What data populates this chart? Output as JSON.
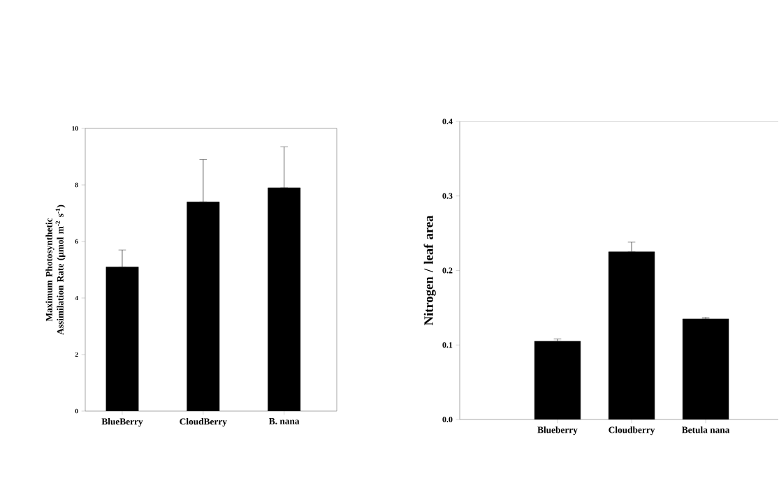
{
  "chart_data": [
    {
      "type": "bar",
      "categories": [
        "BlueBerry",
        "CloudBerry",
        "B. nana"
      ],
      "values": [
        5.1,
        7.4,
        7.9
      ],
      "errors": [
        [
          5.1,
          5.7
        ],
        [
          7.4,
          8.9
        ],
        [
          7.9,
          9.35
        ]
      ],
      "color": "#000000",
      "ylim": [
        0,
        10
      ],
      "yticks": [
        0,
        2,
        4,
        6,
        8,
        10
      ],
      "ylabel": "Maximum Photosynthetic Assimilation Rate (μmol m$^{-2}$ s$^{-1}$)"
    },
    {
      "type": "bar",
      "categories": [
        "Blueberry",
        "Cloudberry",
        "Betula nana"
      ],
      "values": [
        0.105,
        0.225,
        0.135
      ],
      "errors": [
        [
          0.105,
          0.108
        ],
        [
          0.225,
          0.238
        ],
        [
          0.135,
          0.137
        ]
      ],
      "color": "#000000",
      "ylim": [
        0,
        0.4
      ],
      "yticks": [
        {
          "value": 0,
          "label": "0.0"
        },
        {
          "value": 0.1,
          "label": "0.1"
        },
        {
          "value": 0.2,
          "label": "0.2"
        },
        {
          "value": 0.3,
          "label": "0.3"
        },
        {
          "value": 0.4,
          "label": "0.4"
        }
      ],
      "ylabel": "Nitrogen / leaf area"
    }
  ]
}
